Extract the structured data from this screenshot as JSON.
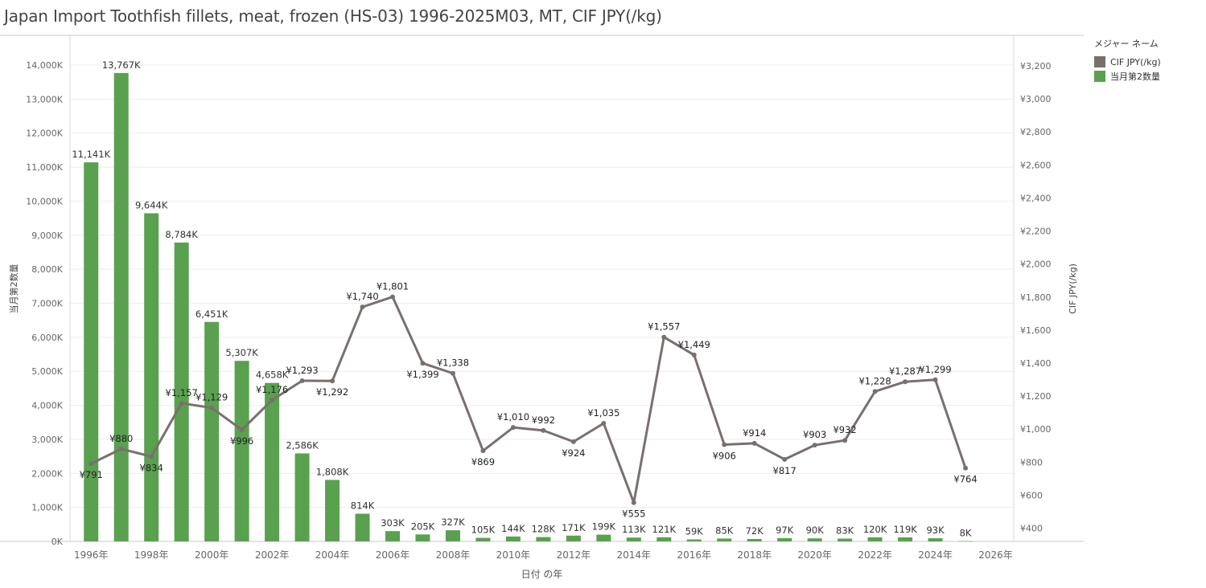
{
  "title": "Japan Import Toothfish fillets, meat, frozen (HS-03) 1996-2025M03, MT, CIF JPY(/kg)",
  "legend": {
    "title": "メジャー ネーム",
    "items": [
      {
        "label": "CIF JPY(/kg)",
        "color": "#79706e"
      },
      {
        "label": "当月第2数量",
        "color": "#59a14f"
      }
    ]
  },
  "chart_data": {
    "type": "bar+line",
    "title": "Japan Import Toothfish fillets, meat, frozen (HS-03) 1996-2025M03, MT, CIF JPY(/kg)",
    "xlabel": "日付 の年",
    "ylabel_left": "当月第2数量",
    "ylabel_right": "CIF JPY(/kg)",
    "x": [
      1996,
      1997,
      1998,
      1999,
      2000,
      2001,
      2002,
      2003,
      2004,
      2005,
      2006,
      2007,
      2008,
      2009,
      2010,
      2011,
      2012,
      2013,
      2014,
      2015,
      2016,
      2017,
      2018,
      2019,
      2020,
      2021,
      2022,
      2023,
      2024,
      2025
    ],
    "x_ticks": [
      1996,
      1998,
      2000,
      2002,
      2004,
      2006,
      2008,
      2010,
      2012,
      2014,
      2016,
      2018,
      2020,
      2022,
      2024,
      2026
    ],
    "x_tick_labels": [
      "1996年",
      "1998年",
      "2000年",
      "2002年",
      "2004年",
      "2006年",
      "2008年",
      "2010年",
      "2012年",
      "2014年",
      "2016年",
      "2018年",
      "2020年",
      "2022年",
      "2024年",
      "2026年"
    ],
    "xlim": [
      1995.3,
      2026.6
    ],
    "ylim_left": [
      0,
      14850
    ],
    "yticks_left": [
      0,
      1000,
      2000,
      3000,
      4000,
      5000,
      6000,
      7000,
      8000,
      9000,
      10000,
      11000,
      12000,
      13000,
      14000
    ],
    "ytick_labels_left": [
      "0K",
      "1,000K",
      "2,000K",
      "3,000K",
      "4,000K",
      "5,000K",
      "6,000K",
      "7,000K",
      "8,000K",
      "9,000K",
      "10,000K",
      "11,000K",
      "12,000K",
      "13,000K",
      "14,000K"
    ],
    "ylim_right": [
      320,
      3380
    ],
    "yticks_right": [
      400,
      600,
      800,
      1000,
      1200,
      1400,
      1600,
      1800,
      2000,
      2200,
      2400,
      2600,
      2800,
      3000,
      3200
    ],
    "ytick_labels_right": [
      "¥400",
      "¥600",
      "¥800",
      "¥1,000",
      "¥1,200",
      "¥1,400",
      "¥1,600",
      "¥1,800",
      "¥2,000",
      "¥2,200",
      "¥2,400",
      "¥2,600",
      "¥2,800",
      "¥3,000",
      "¥3,200"
    ],
    "grid": true,
    "legend_position": "right",
    "series": [
      {
        "name": "当月第2数量",
        "type": "bar",
        "color": "#59a14f",
        "values": [
          11141,
          13767,
          9644,
          8784,
          6451,
          5307,
          4658,
          2586,
          1808,
          814,
          303,
          205,
          327,
          105,
          144,
          128,
          171,
          199,
          113,
          121,
          59,
          85,
          72,
          97,
          90,
          83,
          120,
          119,
          93,
          8
        ],
        "labels": [
          "11,141K",
          "13,767K",
          "9,644K",
          "8,784K",
          "6,451K",
          "5,307K",
          "4,658K",
          "2,586K",
          "1,808K",
          "814K",
          "303K",
          "205K",
          "327K",
          "105K",
          "144K",
          "128K",
          "171K",
          "199K",
          "113K",
          "121K",
          "59K",
          "85K",
          "72K",
          "97K",
          "90K",
          "83K",
          "120K",
          "119K",
          "93K",
          "8K"
        ]
      },
      {
        "name": "CIF JPY(/kg)",
        "type": "line",
        "color": "#79706e",
        "values": [
          791,
          880,
          834,
          1157,
          1129,
          996,
          1176,
          1293,
          1292,
          1740,
          1801,
          1399,
          1338,
          869,
          1010,
          992,
          924,
          1035,
          555,
          1557,
          1449,
          906,
          914,
          817,
          903,
          932,
          1228,
          1287,
          1299,
          764
        ],
        "labels": [
          "¥791",
          "¥880",
          "¥834",
          "¥1,157",
          "¥1,129",
          "¥996",
          "¥1,176",
          "¥1,293",
          "¥1,292",
          "¥1,740",
          "¥1,801",
          "¥1,399",
          "¥1,338",
          "¥869",
          "¥1,010",
          "¥992",
          "¥924",
          "¥1,035",
          "¥555",
          "¥1,557",
          "¥1,449",
          "¥906",
          "¥914",
          "¥817",
          "¥903",
          "¥932",
          "¥1,228",
          "¥1,287",
          "¥1,299",
          "¥764"
        ]
      }
    ]
  }
}
